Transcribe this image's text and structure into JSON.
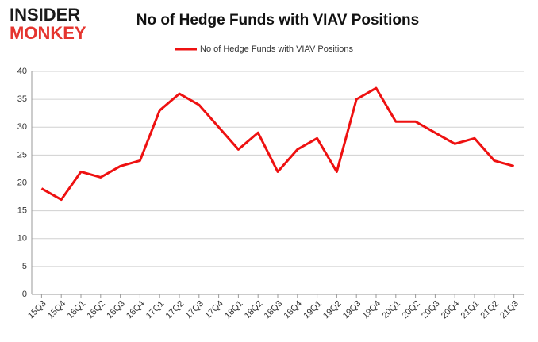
{
  "logo": {
    "line1": "INSIDER",
    "line2": "MONKEY"
  },
  "chart_data": {
    "type": "line",
    "title": "No of Hedge Funds with VIAV Positions",
    "categories": [
      "15Q3",
      "15Q4",
      "16Q1",
      "16Q2",
      "16Q3",
      "16Q4",
      "17Q1",
      "17Q2",
      "17Q3",
      "17Q4",
      "18Q1",
      "18Q2",
      "18Q3",
      "18Q4",
      "19Q1",
      "19Q2",
      "19Q3",
      "19Q4",
      "20Q1",
      "20Q2",
      "20Q3",
      "20Q4",
      "21Q1",
      "21Q2",
      "21Q3"
    ],
    "series": [
      {
        "name": "No of Hedge Funds with VIAV Positions",
        "color": "#ee1111",
        "values": [
          19,
          17,
          22,
          21,
          23,
          24,
          33,
          36,
          34,
          30,
          26,
          29,
          22,
          26,
          28,
          22,
          35,
          37,
          31,
          31,
          29,
          27,
          28,
          24,
          23
        ]
      }
    ],
    "ylim": [
      0,
      40
    ],
    "yticks": [
      0,
      5,
      10,
      15,
      20,
      25,
      30,
      35,
      40
    ],
    "grid": true,
    "legend": "top"
  }
}
